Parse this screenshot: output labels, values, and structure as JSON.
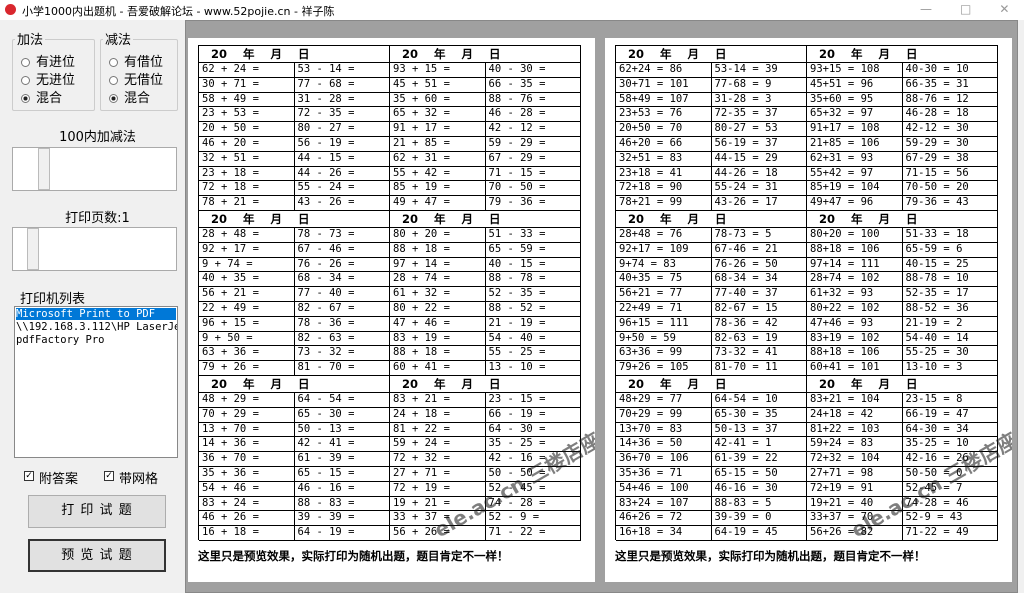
{
  "window": {
    "title": "小学1000内出题机 - 吾爱破解论坛 - www.52pojie.cn - 祥子陈"
  },
  "panel": {
    "add_group": {
      "title": "加法",
      "options": [
        "有进位",
        "无进位",
        "混合"
      ]
    },
    "sub_group": {
      "title": "减法",
      "options": [
        "有借位",
        "无借位",
        "混合"
      ]
    },
    "range_label": "100内加减法",
    "pages_label": "打印页数:1",
    "printer_label": "打印机列表",
    "printers": [
      "Microsoft Print to PDF",
      "\\\\192.168.3.112\\HP LaserJe",
      "pdfFactory Pro"
    ],
    "checks": [
      "附答案",
      "带网格"
    ],
    "buttons": [
      "打 印 试 题",
      "预 览 试 题"
    ]
  },
  "pages": [
    {
      "blocks": [
        {
          "headers": [
            "20    年    月    日",
            "20    年    月    日"
          ],
          "rows": [
            [
              "62 + 24 =",
              "53 - 14 =",
              "93 + 15 =",
              "40 - 30 ="
            ],
            [
              "30 + 71 =",
              "77 - 68 =",
              "45 + 51 =",
              "66 - 35 ="
            ],
            [
              "58 + 49 =",
              "31 - 28 =",
              "35 + 60 =",
              "88 - 76 ="
            ],
            [
              "23 + 53 =",
              "72 - 35 =",
              "65 + 32 =",
              "46 - 28 ="
            ],
            [
              "20 + 50 =",
              "80 - 27 =",
              "91 + 17 =",
              "42 - 12 ="
            ],
            [
              "46 + 20 =",
              "56 - 19 =",
              "21 + 85 =",
              "59 - 29 ="
            ],
            [
              "32 + 51 =",
              "44 - 15 =",
              "62 + 31 =",
              "67 - 29 ="
            ],
            [
              "23 + 18 =",
              "44 - 26 =",
              "55 + 42 =",
              "71 - 15 ="
            ],
            [
              "72 + 18 =",
              "55 - 24 =",
              "85 + 19 =",
              "70 - 50 ="
            ],
            [
              "78 + 21 =",
              "43 - 26 =",
              "49 + 47 =",
              "79 - 36 ="
            ]
          ]
        },
        {
          "headers": [
            "20    年    月    日",
            "20    年    月    日"
          ],
          "rows": [
            [
              "28 + 48 =",
              "78 - 73 =",
              "80 + 20 =",
              "51 - 33 ="
            ],
            [
              "92 + 17 =",
              "67 - 46 =",
              "88 + 18 =",
              "65 - 59 ="
            ],
            [
              "9 + 74 =",
              "76 - 26 =",
              "97 + 14 =",
              "40 - 15 ="
            ],
            [
              "40 + 35 =",
              "68 - 34 =",
              "28 + 74 =",
              "88 - 78 ="
            ],
            [
              "56 + 21 =",
              "77 - 40 =",
              "61 + 32 =",
              "52 - 35 ="
            ],
            [
              "22 + 49 =",
              "82 - 67 =",
              "80 + 22 =",
              "88 - 52 ="
            ],
            [
              "96 + 15 =",
              "78 - 36 =",
              "47 + 46 =",
              "21 - 19 ="
            ],
            [
              "9 + 50 =",
              "82 - 63 =",
              "83 + 19 =",
              "54 - 40 ="
            ],
            [
              "63 + 36 =",
              "73 - 32 =",
              "88 + 18 =",
              "55 - 25 ="
            ],
            [
              "79 + 26 =",
              "81 - 70 =",
              "60 + 41 =",
              "13 - 10 ="
            ]
          ]
        },
        {
          "headers": [
            "20    年    月    日",
            "20    年    月    日"
          ],
          "rows": [
            [
              "48 + 29 =",
              "64 - 54 =",
              "83 + 21 =",
              "23 - 15 ="
            ],
            [
              "70 + 29 =",
              "65 - 30 =",
              "24 + 18 =",
              "66 - 19 ="
            ],
            [
              "13 + 70 =",
              "50 - 13 =",
              "81 + 22 =",
              "64 - 30 ="
            ],
            [
              "14 + 36 =",
              "42 - 41 =",
              "59 + 24 =",
              "35 - 25 ="
            ],
            [
              "36 + 70 =",
              "61 - 39 =",
              "72 + 32 =",
              "42 - 16 ="
            ],
            [
              "35 + 36 =",
              "65 - 15 =",
              "27 + 71 =",
              "50 - 50 ="
            ],
            [
              "54 + 46 =",
              "46 - 16 =",
              "72 + 19 =",
              "52 - 45 ="
            ],
            [
              "83 + 24 =",
              "88 - 83 =",
              "19 + 21 =",
              "74 - 28 ="
            ],
            [
              "46 + 26 =",
              "39 - 39 =",
              "33 + 37 =",
              "52 - 9 ="
            ],
            [
              "16 + 18 =",
              "64 - 19 =",
              "56 + 26 =",
              "71 - 22 ="
            ]
          ]
        }
      ],
      "footer": "这里只是预览效果，实际打印为随机出题，题目肯定不一样！",
      "watermark": "ele.ac.cn 三楼店座"
    },
    {
      "blocks": [
        {
          "headers": [
            "20    年    月    日",
            "20    年    月    日"
          ],
          "rows": [
            [
              "62+24 = 86",
              "53-14 = 39",
              "93+15 = 108",
              "40-30 = 10"
            ],
            [
              "30+71 = 101",
              "77-68 = 9",
              "45+51 = 96",
              "66-35 = 31"
            ],
            [
              "58+49 = 107",
              "31-28 = 3",
              "35+60 = 95",
              "88-76 = 12"
            ],
            [
              "23+53 = 76",
              "72-35 = 37",
              "65+32 = 97",
              "46-28 = 18"
            ],
            [
              "20+50 = 70",
              "80-27 = 53",
              "91+17 = 108",
              "42-12 = 30"
            ],
            [
              "46+20 = 66",
              "56-19 = 37",
              "21+85 = 106",
              "59-29 = 30"
            ],
            [
              "32+51 = 83",
              "44-15 = 29",
              "62+31 = 93",
              "67-29 = 38"
            ],
            [
              "23+18 = 41",
              "44-26 = 18",
              "55+42 = 97",
              "71-15 = 56"
            ],
            [
              "72+18 = 90",
              "55-24 = 31",
              "85+19 = 104",
              "70-50 = 20"
            ],
            [
              "78+21 = 99",
              "43-26 = 17",
              "49+47 = 96",
              "79-36 = 43"
            ]
          ]
        },
        {
          "headers": [
            "20    年    月    日",
            "20    年    月    日"
          ],
          "rows": [
            [
              "28+48 = 76",
              "78-73 = 5",
              "80+20 = 100",
              "51-33 = 18"
            ],
            [
              "92+17 = 109",
              "67-46 = 21",
              "88+18 = 106",
              "65-59 = 6"
            ],
            [
              "9+74 = 83",
              "76-26 = 50",
              "97+14 = 111",
              "40-15 = 25"
            ],
            [
              "40+35 = 75",
              "68-34 = 34",
              "28+74 = 102",
              "88-78 = 10"
            ],
            [
              "56+21 = 77",
              "77-40 = 37",
              "61+32 = 93",
              "52-35 = 17"
            ],
            [
              "22+49 = 71",
              "82-67 = 15",
              "80+22 = 102",
              "88-52 = 36"
            ],
            [
              "96+15 = 111",
              "78-36 = 42",
              "47+46 = 93",
              "21-19 = 2"
            ],
            [
              "9+50 = 59",
              "82-63 = 19",
              "83+19 = 102",
              "54-40 = 14"
            ],
            [
              "63+36 = 99",
              "73-32 = 41",
              "88+18 = 106",
              "55-25 = 30"
            ],
            [
              "79+26 = 105",
              "81-70 = 11",
              "60+41 = 101",
              "13-10 = 3"
            ]
          ]
        },
        {
          "headers": [
            "20    年    月    日",
            "20    年    月    日"
          ],
          "rows": [
            [
              "48+29 = 77",
              "64-54 = 10",
              "83+21 = 104",
              "23-15 = 8"
            ],
            [
              "70+29 = 99",
              "65-30 = 35",
              "24+18 = 42",
              "66-19 = 47"
            ],
            [
              "13+70 = 83",
              "50-13 = 37",
              "81+22 = 103",
              "64-30 = 34"
            ],
            [
              "14+36 = 50",
              "42-41 = 1",
              "59+24 = 83",
              "35-25 = 10"
            ],
            [
              "36+70 = 106",
              "61-39 = 22",
              "72+32 = 104",
              "42-16 = 26"
            ],
            [
              "35+36 = 71",
              "65-15 = 50",
              "27+71 = 98",
              "50-50 = 0"
            ],
            [
              "54+46 = 100",
              "46-16 = 30",
              "72+19 = 91",
              "52-45 = 7"
            ],
            [
              "83+24 = 107",
              "88-83 = 5",
              "19+21 = 40",
              "74-28 = 46"
            ],
            [
              "46+26 = 72",
              "39-39 = 0",
              "33+37 = 70",
              "52-9 = 43"
            ],
            [
              "16+18 = 34",
              "64-19 = 45",
              "56+26 = 82",
              "71-22 = 49"
            ]
          ]
        }
      ],
      "footer": "这里只是预览效果，实际打印为随机出题，题目肯定不一样！",
      "watermark": "ele.ac.cn 三楼店座"
    }
  ]
}
